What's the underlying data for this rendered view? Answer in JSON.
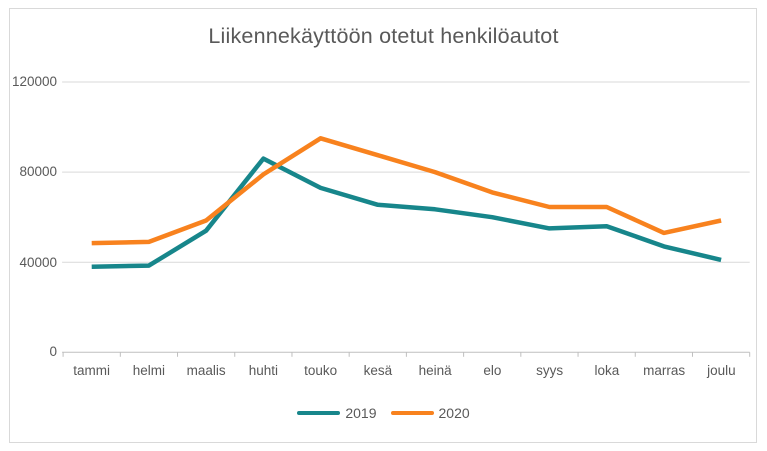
{
  "chart_data": {
    "type": "line",
    "title": "Liikennekäyttöön otetut henkilöautot",
    "categories": [
      "tammi",
      "helmi",
      "maalis",
      "huhti",
      "touko",
      "kesä",
      "heinä",
      "elo",
      "syys",
      "loka",
      "marras",
      "joulu"
    ],
    "series": [
      {
        "name": "2019",
        "color": "#17868B",
        "values": [
          38000,
          38500,
          54000,
          86000,
          73000,
          65500,
          63500,
          60000,
          55000,
          56000,
          47000,
          41000
        ]
      },
      {
        "name": "2020",
        "color": "#F8821E",
        "values": [
          48500,
          49000,
          58500,
          79000,
          95000,
          87500,
          80000,
          71000,
          64500,
          64500,
          53000,
          58500
        ]
      }
    ],
    "y_axis": {
      "min": 0,
      "max": 120000,
      "tick_interval": 40000
    },
    "y_tick_labels": [
      "120000",
      "80000",
      "40000",
      "0"
    ],
    "grid": true,
    "legend_position": "bottom",
    "colors": {
      "text": "#595959",
      "gridline": "#d9d9d9",
      "axis": "#bfbfbf",
      "frame_border": "#d9d9d9"
    }
  }
}
